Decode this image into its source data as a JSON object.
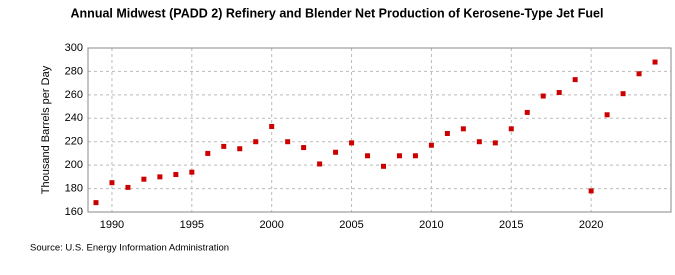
{
  "chart_data": {
    "type": "scatter",
    "title": "Annual Midwest (PADD 2) Refinery and Blender Net Production of Kerosene-Type Jet Fuel",
    "y_label": "Thousand Barrels per Day",
    "source": "Source: U.S. Energy Information Administration",
    "x": [
      1989,
      1990,
      1991,
      1992,
      1993,
      1994,
      1995,
      1996,
      1997,
      1998,
      1999,
      2000,
      2001,
      2002,
      2003,
      2004,
      2005,
      2006,
      2007,
      2008,
      2009,
      2010,
      2011,
      2012,
      2013,
      2014,
      2015,
      2016,
      2017,
      2018,
      2019,
      2020,
      2021,
      2022,
      2023,
      2024
    ],
    "series": [
      {
        "name": "Kerosene-Type Jet Fuel",
        "color": "#cc0000",
        "values": [
          168,
          185,
          181,
          188,
          190,
          192,
          194,
          210,
          216,
          214,
          220,
          233,
          220,
          215,
          201,
          211,
          219,
          208,
          199,
          208,
          208,
          217,
          227,
          231,
          220,
          219,
          231,
          245,
          259,
          262,
          273,
          178,
          243,
          261,
          278,
          288
        ]
      }
    ],
    "xlim": [
      1988.5,
      2025
    ],
    "xticks": [
      1990,
      1995,
      2000,
      2005,
      2010,
      2015,
      2020
    ],
    "ylim": [
      160,
      300
    ],
    "yticks": [
      160,
      180,
      200,
      220,
      240,
      260,
      280,
      300
    ],
    "grid": true
  }
}
